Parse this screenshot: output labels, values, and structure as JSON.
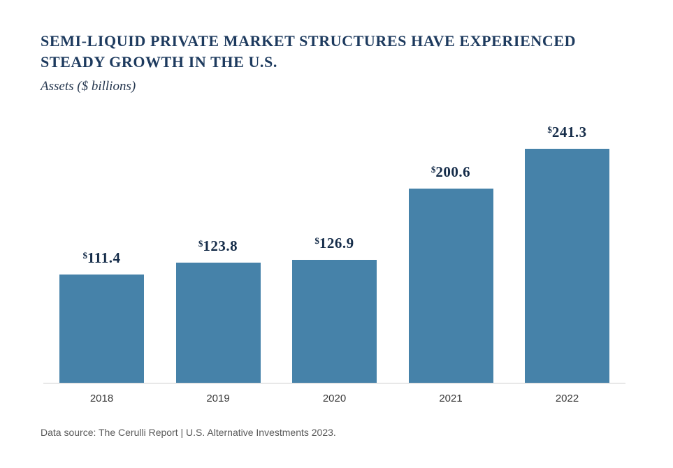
{
  "header": {
    "title": "SEMI-LIQUID PRIVATE MARKET STRUCTURES HAVE EXPERIENCED\nSTEADY GROWTH IN THE U.S.",
    "subtitle": "Assets ($ billions)"
  },
  "chart_data": {
    "type": "bar",
    "categories": [
      "2018",
      "2019",
      "2020",
      "2021",
      "2022"
    ],
    "values": [
      111.4,
      123.8,
      126.9,
      200.6,
      241.3
    ],
    "value_prefix": "$",
    "value_decimals": 1,
    "title": "SEMI-LIQUID PRIVATE MARKET STRUCTURES HAVE EXPERIENCED STEADY GROWTH IN THE U.S.",
    "xlabel": "",
    "ylabel": "Assets ($ billions)",
    "ylim": [
      0,
      250
    ],
    "grid": false,
    "legend": "none",
    "data_labels": "above-bars"
  },
  "footer": {
    "source": "Data source: The Cerulli Report | U.S. Alternative Investments 2023."
  },
  "colors": {
    "bar": "#4682A9",
    "title": "#1d3a5e",
    "value_label": "#152c49",
    "axis_line": "#cfcfcf",
    "year_label": "#3a3a3a",
    "footer": "#595959",
    "background": "#ffffff"
  }
}
